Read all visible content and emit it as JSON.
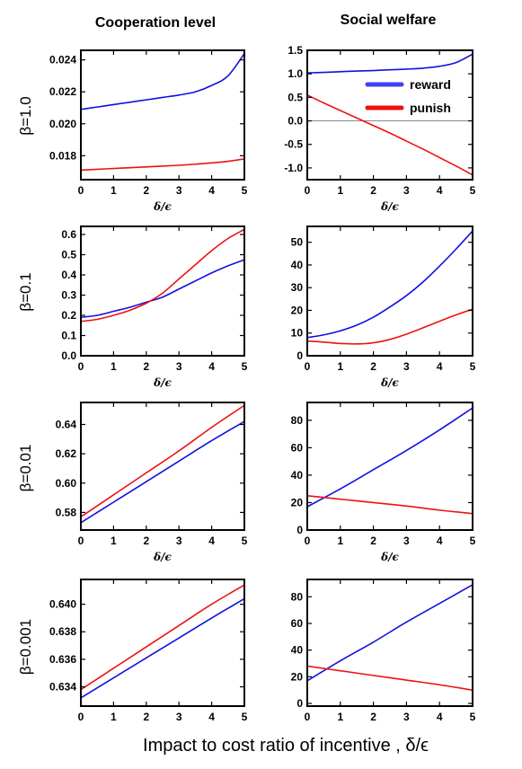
{
  "figure": {
    "column_titles": [
      "Cooperation level",
      "Social welfare"
    ],
    "row_labels": [
      "β=1.0",
      "β=0.1",
      "β=0.01",
      "β=0.001"
    ],
    "bottom_xlabel": "Impact to cost ratio of incentive , δ/ϵ",
    "panel_xlabel": "δ/ϵ",
    "legend": {
      "entries": [
        "reward",
        "punish"
      ],
      "placement": "upper-right of top Social welfare panel"
    },
    "colors": {
      "reward": "#1010e0",
      "punish": "#ee1111",
      "zero_line": "#8a8a8a"
    }
  },
  "chart_data": [
    {
      "type": "line",
      "row": 0,
      "col": 0,
      "xlim": [
        0,
        5
      ],
      "ylim": [
        0.0165,
        0.0246
      ],
      "xticks": [
        "0",
        "1",
        "2",
        "3",
        "4",
        "5"
      ],
      "yticks": [
        "0.018",
        "0.020",
        "0.022",
        "0.024"
      ],
      "xtick_values": [
        0,
        1,
        2,
        3,
        4,
        5
      ],
      "ytick_values": [
        0.018,
        0.02,
        0.022,
        0.024
      ],
      "xlabel": "δ/ϵ",
      "series": [
        {
          "name": "reward",
          "x": [
            0,
            0.5,
            1,
            1.5,
            2,
            2.5,
            3,
            3.5,
            4,
            4.5,
            5
          ],
          "y": [
            0.0209,
            0.02105,
            0.0212,
            0.02135,
            0.0215,
            0.02165,
            0.0218,
            0.022,
            0.0224,
            0.023,
            0.0244
          ]
        },
        {
          "name": "punish",
          "x": [
            0,
            0.5,
            1,
            1.5,
            2,
            2.5,
            3,
            3.5,
            4,
            4.5,
            5
          ],
          "y": [
            0.0171,
            0.01715,
            0.0172,
            0.01725,
            0.0173,
            0.01735,
            0.0174,
            0.01747,
            0.01755,
            0.01765,
            0.0178
          ]
        }
      ]
    },
    {
      "type": "line",
      "row": 0,
      "col": 1,
      "xlim": [
        0,
        5
      ],
      "ylim": [
        -1.25,
        1.5
      ],
      "xticks": [
        "0",
        "1",
        "2",
        "3",
        "4",
        "5"
      ],
      "yticks": [
        "-1.0",
        "-0.5",
        "0.0",
        "0.5",
        "1.0",
        "1.5"
      ],
      "xtick_values": [
        0,
        1,
        2,
        3,
        4,
        5
      ],
      "ytick_values": [
        -1.0,
        -0.5,
        0.0,
        0.5,
        1.0,
        1.5
      ],
      "xlabel": "δ/ϵ",
      "hline": 0,
      "series": [
        {
          "name": "reward",
          "x": [
            0,
            0.5,
            1,
            1.5,
            2,
            2.5,
            3,
            3.5,
            4,
            4.5,
            5
          ],
          "y": [
            1.02,
            1.03,
            1.045,
            1.06,
            1.07,
            1.085,
            1.1,
            1.12,
            1.16,
            1.24,
            1.42
          ]
        },
        {
          "name": "punish",
          "x": [
            0,
            0.5,
            1,
            1.5,
            2,
            2.5,
            3,
            3.5,
            4,
            4.5,
            5
          ],
          "y": [
            0.55,
            0.38,
            0.22,
            0.06,
            -0.1,
            -0.26,
            -0.43,
            -0.6,
            -0.78,
            -0.96,
            -1.15
          ]
        }
      ]
    },
    {
      "type": "line",
      "row": 1,
      "col": 0,
      "xlim": [
        0,
        5
      ],
      "ylim": [
        0,
        0.64
      ],
      "xticks": [
        "0",
        "1",
        "2",
        "3",
        "4",
        "5"
      ],
      "yticks": [
        "0.0",
        "0.1",
        "0.2",
        "0.3",
        "0.4",
        "0.5",
        "0.6"
      ],
      "xtick_values": [
        0,
        1,
        2,
        3,
        4,
        5
      ],
      "ytick_values": [
        0.0,
        0.1,
        0.2,
        0.3,
        0.4,
        0.5,
        0.6
      ],
      "xlabel": "δ/ϵ",
      "series": [
        {
          "name": "reward",
          "x": [
            0,
            0.5,
            1,
            1.5,
            2,
            2.5,
            3,
            3.5,
            4,
            4.5,
            5
          ],
          "y": [
            0.19,
            0.2,
            0.22,
            0.24,
            0.265,
            0.29,
            0.33,
            0.37,
            0.41,
            0.445,
            0.475
          ]
        },
        {
          "name": "punish",
          "x": [
            0,
            0.5,
            1,
            1.5,
            2,
            2.5,
            3,
            3.5,
            4,
            4.5,
            5
          ],
          "y": [
            0.17,
            0.18,
            0.2,
            0.225,
            0.26,
            0.31,
            0.38,
            0.45,
            0.52,
            0.58,
            0.625
          ]
        }
      ]
    },
    {
      "type": "line",
      "row": 1,
      "col": 1,
      "xlim": [
        0,
        5
      ],
      "ylim": [
        0,
        57
      ],
      "xticks": [
        "0",
        "1",
        "2",
        "3",
        "4",
        "5"
      ],
      "yticks": [
        "0",
        "10",
        "20",
        "30",
        "40",
        "50"
      ],
      "xtick_values": [
        0,
        1,
        2,
        3,
        4,
        5
      ],
      "ytick_values": [
        0,
        10,
        20,
        30,
        40,
        50
      ],
      "xlabel": "δ/ϵ",
      "series": [
        {
          "name": "reward",
          "x": [
            0,
            0.5,
            1,
            1.5,
            2,
            2.5,
            3,
            3.5,
            4,
            4.5,
            5
          ],
          "y": [
            8,
            9.2,
            11,
            13.5,
            17,
            21.5,
            26.5,
            32.5,
            39.5,
            47,
            55
          ]
        },
        {
          "name": "punish",
          "x": [
            0,
            0.5,
            1,
            1.5,
            2,
            2.5,
            3,
            3.5,
            4,
            4.5,
            5
          ],
          "y": [
            6.5,
            6,
            5.4,
            5.2,
            5.7,
            7.2,
            9.5,
            12.3,
            15.2,
            18,
            20.5
          ]
        }
      ]
    },
    {
      "type": "line",
      "row": 2,
      "col": 0,
      "xlim": [
        0,
        5
      ],
      "ylim": [
        0.568,
        0.655
      ],
      "xticks": [
        "0",
        "1",
        "2",
        "3",
        "4",
        "5"
      ],
      "yticks": [
        "0.58",
        "0.60",
        "0.62",
        "0.64"
      ],
      "xtick_values": [
        0,
        1,
        2,
        3,
        4,
        5
      ],
      "ytick_values": [
        0.58,
        0.6,
        0.62,
        0.64
      ],
      "xlabel": "δ/ϵ",
      "series": [
        {
          "name": "reward",
          "x": [
            0,
            1,
            2,
            3,
            4,
            5
          ],
          "y": [
            0.573,
            0.587,
            0.601,
            0.615,
            0.629,
            0.642
          ]
        },
        {
          "name": "punish",
          "x": [
            0,
            1,
            2,
            3,
            4,
            5
          ],
          "y": [
            0.577,
            0.592,
            0.607,
            0.622,
            0.638,
            0.653
          ]
        }
      ]
    },
    {
      "type": "line",
      "row": 2,
      "col": 1,
      "xlim": [
        0,
        5
      ],
      "ylim": [
        0,
        93
      ],
      "xticks": [
        "0",
        "1",
        "2",
        "3",
        "4",
        "5"
      ],
      "yticks": [
        "0",
        "20",
        "40",
        "60",
        "80"
      ],
      "xtick_values": [
        0,
        1,
        2,
        3,
        4,
        5
      ],
      "ytick_values": [
        0,
        20,
        40,
        60,
        80
      ],
      "xlabel": "δ/ϵ",
      "series": [
        {
          "name": "reward",
          "x": [
            0,
            1,
            2,
            3,
            4,
            5
          ],
          "y": [
            17,
            30,
            44,
            58,
            73,
            89
          ]
        },
        {
          "name": "punish",
          "x": [
            0,
            1,
            2,
            3,
            4,
            5
          ],
          "y": [
            25,
            22.5,
            20,
            17.5,
            14.5,
            12
          ]
        }
      ]
    },
    {
      "type": "line",
      "row": 3,
      "col": 0,
      "xlim": [
        0,
        5
      ],
      "ylim": [
        0.6326,
        0.6418
      ],
      "xticks": [
        "0",
        "1",
        "2",
        "3",
        "4",
        "5"
      ],
      "yticks": [
        "0.634",
        "0.636",
        "0.638",
        "0.640"
      ],
      "xtick_values": [
        0,
        1,
        2,
        3,
        4,
        5
      ],
      "ytick_values": [
        0.634,
        0.636,
        0.638,
        0.64
      ],
      "xlabel": "",
      "series": [
        {
          "name": "reward",
          "x": [
            0,
            1,
            2,
            3,
            4,
            5
          ],
          "y": [
            0.6332,
            0.63465,
            0.6361,
            0.63755,
            0.639,
            0.6404
          ]
        },
        {
          "name": "punish",
          "x": [
            0,
            1,
            2,
            3,
            4,
            5
          ],
          "y": [
            0.6338,
            0.63535,
            0.6369,
            0.63845,
            0.64,
            0.6414
          ]
        }
      ]
    },
    {
      "type": "line",
      "row": 3,
      "col": 1,
      "xlim": [
        0,
        5
      ],
      "ylim": [
        -2,
        93
      ],
      "xticks": [
        "0",
        "1",
        "2",
        "3",
        "4",
        "5"
      ],
      "yticks": [
        "0",
        "20",
        "40",
        "60",
        "80"
      ],
      "xtick_values": [
        0,
        1,
        2,
        3,
        4,
        5
      ],
      "ytick_values": [
        0,
        20,
        40,
        60,
        80
      ],
      "xlabel": "",
      "series": [
        {
          "name": "reward",
          "x": [
            0,
            1,
            2,
            3,
            4,
            5
          ],
          "y": [
            17,
            32,
            46,
            61,
            75,
            89
          ]
        },
        {
          "name": "punish",
          "x": [
            0,
            1,
            2,
            3,
            4,
            5
          ],
          "y": [
            28,
            24.5,
            21,
            17.5,
            14,
            10
          ]
        }
      ]
    }
  ]
}
